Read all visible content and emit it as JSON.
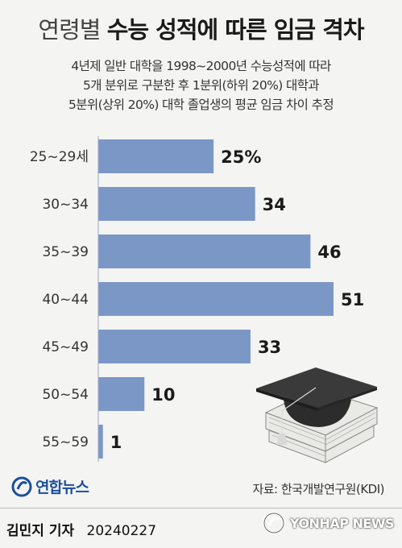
{
  "title": {
    "light": "연령별",
    "bold": "수능 성적에 따른 임금 격차"
  },
  "subtitle": [
    "4년제 일반 대학을 1998~2000년 수능성적에 따라",
    "5개 분위로 구분한 후 1분위(하위 20%) 대학과",
    "5분위(상위 20%) 대학 졸업생의 평균 임금 차이 추정"
  ],
  "chart_data": {
    "type": "bar",
    "orientation": "horizontal",
    "categories": [
      "25~29세",
      "30~34",
      "35~39",
      "40~44",
      "45~49",
      "50~54",
      "55~59"
    ],
    "values": [
      25,
      34,
      46,
      51,
      33,
      10,
      1
    ],
    "value_labels": [
      "25%",
      "34",
      "46",
      "51",
      "33",
      "10",
      "1"
    ],
    "xlim": [
      0,
      51
    ],
    "bar_color": "#7b97c6",
    "grid": false
  },
  "source": "자료: 한국개발연구원(KDI)",
  "logo": {
    "text": "연합뉴스",
    "icon": "yonhap-logo-icon"
  },
  "footer": {
    "author": "김민지 기자",
    "date": "20240227",
    "agency": "YONHAP NEWS",
    "agency_icon": "yonhap-news-icon"
  }
}
